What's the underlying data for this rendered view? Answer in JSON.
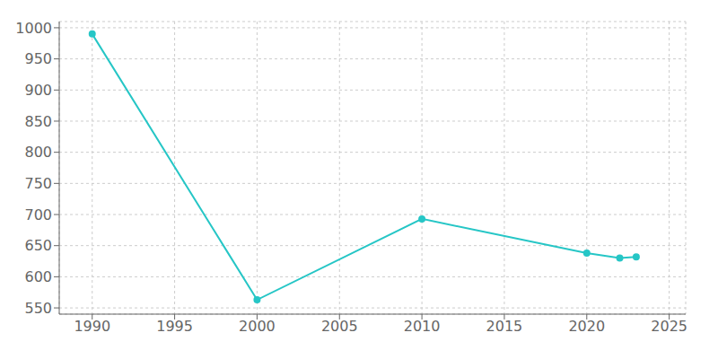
{
  "chart_data": {
    "type": "line",
    "x": [
      1990,
      2000,
      2010,
      2020,
      2022,
      2023
    ],
    "values": [
      990,
      563,
      693,
      638,
      630,
      632
    ],
    "color": "#26c6c6",
    "marker": "circle",
    "xlim": [
      1988,
      2026
    ],
    "ylim": [
      540,
      1010
    ],
    "xticks": [
      1990,
      1995,
      2000,
      2005,
      2010,
      2015,
      2020,
      2025
    ],
    "yticks": [
      550,
      600,
      650,
      700,
      750,
      800,
      850,
      900,
      950,
      1000
    ],
    "grid": true
  }
}
